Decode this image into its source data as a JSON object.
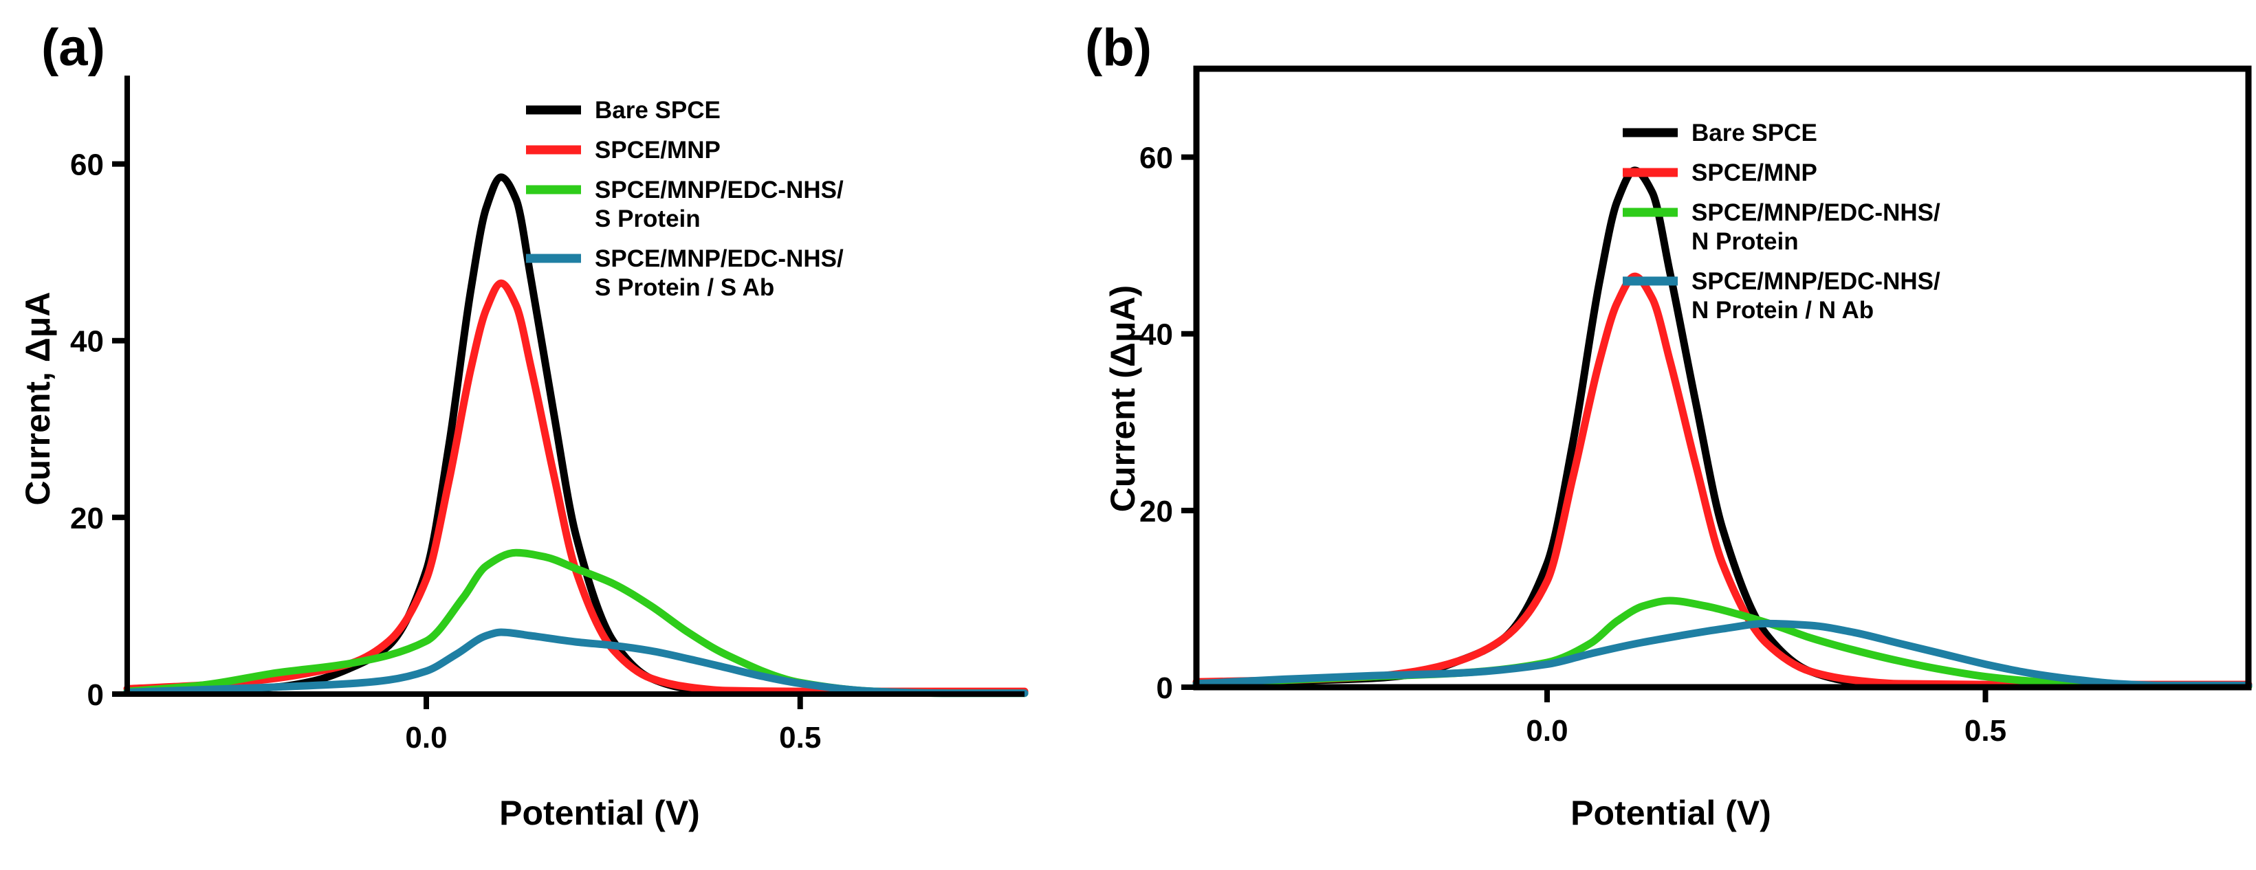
{
  "chart_data": [
    {
      "type": "line",
      "panel_label": "(a)",
      "xlabel": "Potential (V)",
      "ylabel": "Current, ΔμA",
      "xlim": [
        -0.4,
        0.8
      ],
      "ylim": [
        0,
        70
      ],
      "xticks": [
        0.0,
        0.5
      ],
      "xtick_labels": [
        "0.0",
        "0.5"
      ],
      "yticks": [
        0,
        20,
        40,
        60
      ],
      "ytick_labels": [
        "0",
        "20",
        "40",
        "60"
      ],
      "frame": false,
      "legend_position": "top-right",
      "series": [
        {
          "name": "Bare SPCE",
          "legend_lines": [
            "Bare SPCE"
          ],
          "color": "#000000",
          "x": [
            -0.4,
            -0.3,
            -0.2,
            -0.15,
            -0.1,
            -0.05,
            0.0,
            0.03,
            0.06,
            0.08,
            0.1,
            0.12,
            0.14,
            0.17,
            0.2,
            0.25,
            0.3,
            0.35,
            0.4,
            0.5,
            0.6,
            0.8
          ],
          "y": [
            0.2,
            0.4,
            0.8,
            1.5,
            3.0,
            5.5,
            14.0,
            28.0,
            46.0,
            55.0,
            58.5,
            56.0,
            47.0,
            32.0,
            18.0,
            6.0,
            1.8,
            0.6,
            0.3,
            0.2,
            0.2,
            0.2
          ]
        },
        {
          "name": "SPCE/MNP",
          "legend_lines": [
            "SPCE/MNP"
          ],
          "color": "#ff2020",
          "x": [
            -0.4,
            -0.3,
            -0.2,
            -0.15,
            -0.1,
            -0.05,
            0.0,
            0.03,
            0.06,
            0.08,
            0.1,
            0.12,
            0.14,
            0.17,
            0.2,
            0.25,
            0.3,
            0.35,
            0.4,
            0.5,
            0.6,
            0.8
          ],
          "y": [
            0.6,
            1.0,
            1.8,
            2.5,
            3.5,
            6.0,
            13.0,
            24.0,
            37.0,
            43.5,
            46.5,
            44.0,
            37.0,
            25.0,
            14.0,
            5.0,
            1.8,
            0.8,
            0.4,
            0.3,
            0.3,
            0.3
          ]
        },
        {
          "name": "SPCE/MNP/EDC-NHS/ S Protein",
          "legend_lines": [
            "SPCE/MNP/EDC-NHS/",
            "S Protein"
          ],
          "color": "#2ecc1a",
          "x": [
            -0.4,
            -0.3,
            -0.2,
            -0.1,
            0.0,
            0.05,
            0.08,
            0.12,
            0.16,
            0.2,
            0.25,
            0.3,
            0.35,
            0.4,
            0.5,
            0.6,
            0.7,
            0.8
          ],
          "y": [
            0.3,
            1.0,
            2.4,
            3.5,
            6.0,
            11.0,
            14.5,
            16.0,
            15.5,
            14.2,
            12.5,
            10.0,
            7.0,
            4.5,
            1.3,
            0.3,
            0.1,
            0.1
          ]
        },
        {
          "name": "SPCE/MNP/EDC-NHS/ S Protein / S Ab",
          "legend_lines": [
            "SPCE/MNP/EDC-NHS/",
            "S Protein / S Ab"
          ],
          "color": "#1f7fa3",
          "x": [
            -0.4,
            -0.3,
            -0.2,
            -0.1,
            -0.05,
            0.0,
            0.04,
            0.08,
            0.1,
            0.14,
            0.2,
            0.25,
            0.3,
            0.35,
            0.4,
            0.45,
            0.5,
            0.6,
            0.7,
            0.8
          ],
          "y": [
            0.2,
            0.5,
            0.8,
            1.2,
            1.6,
            2.6,
            4.5,
            6.6,
            7.0,
            6.6,
            5.9,
            5.5,
            4.9,
            4.0,
            3.0,
            2.0,
            1.2,
            0.3,
            0.1,
            0.1
          ]
        }
      ]
    },
    {
      "type": "line",
      "panel_label": "(b)",
      "xlabel": "Potential (V)",
      "ylabel": "Current (ΔμA)",
      "xlim": [
        -0.4,
        0.8
      ],
      "ylim": [
        0,
        70
      ],
      "xticks": [
        0.0,
        0.5
      ],
      "xtick_labels": [
        "0.0",
        "0.5"
      ],
      "yticks": [
        0,
        20,
        40,
        60
      ],
      "ytick_labels": [
        "0",
        "20",
        "40",
        "60"
      ],
      "frame": true,
      "legend_position": "top-right",
      "series": [
        {
          "name": "Bare SPCE",
          "legend_lines": [
            "Bare SPCE"
          ],
          "color": "#000000",
          "x": [
            -0.4,
            -0.3,
            -0.2,
            -0.15,
            -0.1,
            -0.05,
            0.0,
            0.03,
            0.06,
            0.08,
            0.1,
            0.12,
            0.14,
            0.17,
            0.2,
            0.25,
            0.3,
            0.35,
            0.4,
            0.5,
            0.6,
            0.8
          ],
          "y": [
            0.5,
            0.7,
            1.0,
            1.5,
            3.0,
            5.5,
            14.0,
            28.0,
            46.0,
            55.0,
            58.5,
            56.0,
            47.0,
            32.0,
            18.0,
            6.0,
            1.8,
            0.6,
            0.3,
            0.2,
            0.2,
            0.2
          ]
        },
        {
          "name": "SPCE/MNP",
          "legend_lines": [
            "SPCE/MNP"
          ],
          "color": "#ff2020",
          "x": [
            -0.4,
            -0.3,
            -0.2,
            -0.15,
            -0.1,
            -0.05,
            0.0,
            0.03,
            0.06,
            0.08,
            0.1,
            0.12,
            0.14,
            0.17,
            0.2,
            0.25,
            0.3,
            0.35,
            0.4,
            0.5,
            0.6,
            0.8
          ],
          "y": [
            0.6,
            0.8,
            1.2,
            1.8,
            3.0,
            5.5,
            12.0,
            24.0,
            37.0,
            43.5,
            46.5,
            44.0,
            37.0,
            25.0,
            14.0,
            5.0,
            1.8,
            0.8,
            0.4,
            0.3,
            0.3,
            0.3
          ]
        },
        {
          "name": "SPCE/MNP/EDC-NHS/ N Protein",
          "legend_lines": [
            "SPCE/MNP/EDC-NHS/",
            "N Protein"
          ],
          "color": "#2ecc1a",
          "x": [
            -0.4,
            -0.3,
            -0.2,
            -0.1,
            0.0,
            0.05,
            0.08,
            0.11,
            0.14,
            0.18,
            0.22,
            0.26,
            0.3,
            0.35,
            0.4,
            0.45,
            0.5,
            0.55,
            0.6,
            0.7,
            0.8
          ],
          "y": [
            0.4,
            0.8,
            1.2,
            1.6,
            2.8,
            5.0,
            7.5,
            9.2,
            9.8,
            9.2,
            8.2,
            7.0,
            5.6,
            4.2,
            3.0,
            2.0,
            1.2,
            0.7,
            0.4,
            0.1,
            0.1
          ]
        },
        {
          "name": "SPCE/MNP/EDC-NHS/ N Protein / N Ab",
          "legend_lines": [
            "SPCE/MNP/EDC-NHS/",
            "N Protein / N Ab"
          ],
          "color": "#1f7fa3",
          "x": [
            -0.4,
            -0.3,
            -0.2,
            -0.1,
            0.0,
            0.05,
            0.1,
            0.15,
            0.2,
            0.25,
            0.3,
            0.35,
            0.4,
            0.45,
            0.5,
            0.55,
            0.6,
            0.65,
            0.7,
            0.8
          ],
          "y": [
            0.4,
            0.9,
            1.3,
            1.6,
            2.6,
            3.8,
            4.9,
            5.8,
            6.6,
            7.2,
            7.0,
            6.2,
            5.0,
            3.8,
            2.6,
            1.6,
            0.9,
            0.4,
            0.2,
            0.2
          ]
        }
      ]
    }
  ]
}
